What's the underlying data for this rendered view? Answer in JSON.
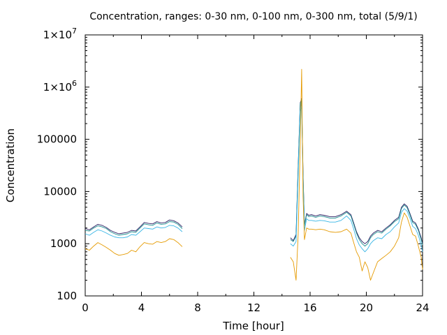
{
  "chart_data": {
    "type": "line",
    "title": "Concentration, ranges: 0-30 nm, 0-100 nm, 0-300 nm, total (5/9/1)",
    "xlabel": "Time [hour]",
    "ylabel": "Concentration",
    "xlim": [
      0,
      24
    ],
    "ylim": [
      100,
      10000000
    ],
    "yscale": "log",
    "grid": false,
    "legend": "none",
    "x_ticks": [
      0,
      4,
      8,
      12,
      16,
      20,
      24
    ],
    "x_tick_labels": [
      "0",
      "4",
      "8",
      "12",
      "16",
      "20",
      "24"
    ],
    "y_ticks": [
      100,
      1000,
      10000,
      100000,
      1000000,
      10000000
    ],
    "y_tick_labels": [
      "100",
      "1000",
      "10000",
      "100000",
      "1×10",
      "1×10"
    ],
    "y_tick_exponents": [
      "",
      "",
      "",
      "",
      "6",
      "7"
    ],
    "x": [
      0.0,
      0.3,
      0.6,
      0.9,
      1.2,
      1.5,
      1.8,
      2.1,
      2.4,
      2.7,
      3.0,
      3.3,
      3.6,
      3.9,
      4.2,
      4.5,
      4.8,
      5.1,
      5.4,
      5.7,
      6.0,
      6.3,
      6.6,
      6.9,
      null,
      14.6,
      14.8,
      15.0,
      15.15,
      15.3,
      15.4,
      15.5,
      15.6,
      15.75,
      15.9,
      16.1,
      16.4,
      16.7,
      17.0,
      17.4,
      17.8,
      18.2,
      18.6,
      18.9,
      19.1,
      19.3,
      19.5,
      19.7,
      19.9,
      20.1,
      20.3,
      20.5,
      20.8,
      21.1,
      21.4,
      21.7,
      22.0,
      22.3,
      22.5,
      22.7,
      22.9,
      23.1,
      23.3,
      23.5,
      23.7,
      23.9,
      24.0
    ],
    "series": [
      {
        "color": "#2a1e63",
        "values": [
          1950,
          1850,
          2100,
          2350,
          2250,
          2050,
          1800,
          1650,
          1550,
          1600,
          1650,
          1800,
          1750,
          2100,
          2550,
          2450,
          2400,
          2650,
          2500,
          2550,
          2850,
          2750,
          2500,
          2100,
          null,
          1300,
          1150,
          1500,
          30000,
          500000,
          600000,
          22000,
          2300,
          3800,
          3500,
          3600,
          3400,
          3600,
          3500,
          3300,
          3300,
          3600,
          4200,
          3600,
          2500,
          1700,
          1300,
          1100,
          1000,
          1100,
          1400,
          1600,
          1800,
          1700,
          2000,
          2300,
          2800,
          3200,
          5000,
          5800,
          5200,
          3800,
          2700,
          2500,
          1900,
          1300,
          1000
        ]
      },
      {
        "color": "#1e8f8f",
        "values": [
          1800,
          1750,
          2000,
          2200,
          2100,
          1950,
          1700,
          1550,
          1450,
          1500,
          1550,
          1700,
          1650,
          2000,
          2400,
          2300,
          2250,
          2500,
          2350,
          2400,
          2650,
          2600,
          2350,
          1950,
          null,
          1200,
          1100,
          1400,
          28000,
          480000,
          580000,
          21000,
          2200,
          3600,
          3300,
          3400,
          3200,
          3400,
          3300,
          3100,
          3100,
          3400,
          4000,
          3400,
          2350,
          1600,
          1200,
          1000,
          900,
          1000,
          1300,
          1500,
          1700,
          1600,
          1900,
          2200,
          2650,
          3000,
          4700,
          5500,
          4900,
          3600,
          2550,
          2350,
          1800,
          1200,
          950
        ]
      },
      {
        "color": "#38b6e6",
        "values": [
          1550,
          1450,
          1650,
          1850,
          1750,
          1600,
          1450,
          1350,
          1300,
          1300,
          1350,
          1500,
          1450,
          1700,
          2000,
          1950,
          1900,
          2100,
          2000,
          2050,
          2250,
          2200,
          2000,
          1700,
          null,
          1000,
          900,
          1100,
          20000,
          350000,
          420000,
          16000,
          1800,
          3000,
          2800,
          2800,
          2700,
          2800,
          2750,
          2600,
          2600,
          2800,
          3400,
          2800,
          1900,
          1250,
          950,
          800,
          700,
          800,
          1000,
          1150,
          1300,
          1250,
          1500,
          1700,
          2100,
          2500,
          4000,
          4700,
          4200,
          3100,
          2150,
          1950,
          1450,
          950,
          700
        ]
      },
      {
        "color": "#e59a00",
        "values": [
          800,
          750,
          900,
          1050,
          950,
          850,
          750,
          650,
          600,
          620,
          650,
          750,
          700,
          880,
          1050,
          1000,
          980,
          1100,
          1050,
          1100,
          1250,
          1200,
          1050,
          880,
          null,
          550,
          450,
          200,
          1500,
          80000,
          2200000,
          8000,
          1200,
          2000,
          1900,
          1900,
          1850,
          1900,
          1850,
          1700,
          1650,
          1700,
          1900,
          1600,
          1050,
          700,
          550,
          300,
          450,
          350,
          200,
          280,
          450,
          520,
          600,
          700,
          900,
          1300,
          2600,
          3900,
          3200,
          2200,
          1500,
          1400,
          900,
          550,
          320
        ]
      }
    ]
  }
}
